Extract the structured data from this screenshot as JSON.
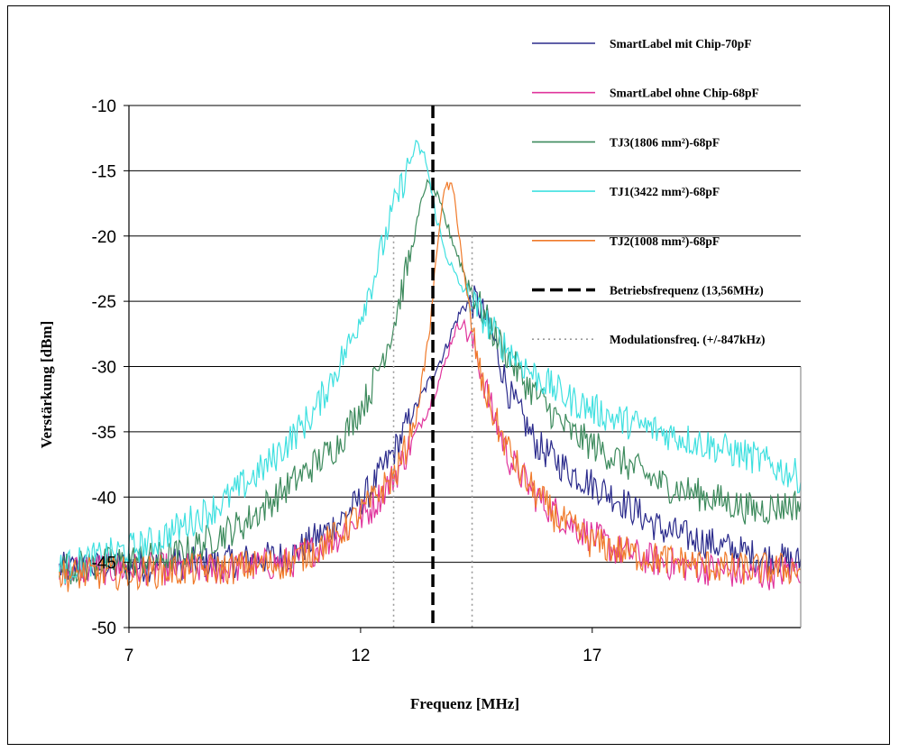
{
  "chart_data": {
    "type": "line",
    "xlabel": "Frequenz [MHz]",
    "ylabel": "Verstärkung [dBm]",
    "xlim": [
      7,
      21.5
    ],
    "ylim": [
      -50,
      -10
    ],
    "x_ticks": [
      7,
      12,
      17
    ],
    "y_ticks": [
      -10,
      -15,
      -20,
      -25,
      -30,
      -35,
      -40,
      -45,
      -50
    ],
    "grid": "horizontal",
    "legend_position": "top-right",
    "series": [
      {
        "name": "SmartLabel mit Chip-70pF",
        "color": "#2b2b8c",
        "x": [
          5.5,
          9,
          10.5,
          11.5,
          12.2,
          12.8,
          13.2,
          13.5,
          13.8,
          14.0,
          14.2,
          14.5,
          14.8,
          15.2,
          15.8,
          16.5,
          17.5,
          18.5,
          19.5,
          20.5,
          21.5
        ],
        "y": [
          -45.5,
          -45,
          -44.5,
          -42,
          -39.5,
          -36,
          -33,
          -31,
          -29,
          -27,
          -25.5,
          -25,
          -27,
          -32,
          -36,
          -38,
          -40,
          -42.5,
          -43.5,
          -44.5,
          -45
        ]
      },
      {
        "name": "SmartLabel ohne Chip-68pF",
        "color": "#e0349c",
        "x": [
          5.5,
          9,
          10.5,
          11.5,
          12.2,
          12.8,
          13.2,
          13.5,
          13.8,
          14.0,
          14.2,
          14.5,
          14.8,
          15.2,
          15.8,
          16.5,
          17.5,
          18.5,
          19.5,
          20.5,
          21.5
        ],
        "y": [
          -45.5,
          -45.5,
          -45,
          -43,
          -41,
          -38,
          -35,
          -33,
          -30,
          -27.5,
          -26.5,
          -29,
          -33,
          -37,
          -40,
          -42,
          -44,
          -45,
          -45.5,
          -46,
          -45.5
        ]
      },
      {
        "name": "TJ3(1806 mm²)-68pF",
        "color": "#3c8a5c",
        "x": [
          5.5,
          8,
          9.5,
          10.5,
          11.5,
          12.2,
          12.7,
          13.1,
          13.4,
          13.6,
          13.9,
          14.3,
          14.8,
          15.5,
          16.5,
          17.5,
          18.5,
          19.5,
          20.5,
          21.5
        ],
        "y": [
          -45.5,
          -44.5,
          -42,
          -39,
          -36,
          -32,
          -27,
          -21,
          -16,
          -16.5,
          -19.5,
          -23.5,
          -27,
          -31,
          -35,
          -37,
          -39,
          -40,
          -41,
          -40.5
        ]
      },
      {
        "name": "TJ1(3422 mm²)-68pF",
        "color": "#3fe0e0",
        "x": [
          5.5,
          7.5,
          9,
          10,
          11,
          11.8,
          12.3,
          12.7,
          13.0,
          13.2,
          13.4,
          13.6,
          13.8,
          14.1,
          14.5,
          15.0,
          15.7,
          16.5,
          17.5,
          18.5,
          19.5,
          20.5,
          21.5
        ],
        "y": [
          -45.5,
          -43.5,
          -40.5,
          -37.5,
          -33.5,
          -28,
          -23,
          -18,
          -15,
          -13,
          -14,
          -18,
          -21,
          -23.5,
          -25.5,
          -28,
          -30.5,
          -32.5,
          -34,
          -35,
          -36,
          -37,
          -38.5
        ]
      },
      {
        "name": "TJ2(1008 mm²)-68pF",
        "color": "#f07a2a",
        "x": [
          5.5,
          9,
          10.5,
          11.5,
          12.2,
          12.8,
          13.2,
          13.5,
          13.7,
          13.85,
          14.0,
          14.1,
          14.3,
          14.6,
          15.0,
          15.5,
          16.2,
          17.0,
          18.0,
          19.0,
          20.0,
          21.0,
          21.5
        ],
        "y": [
          -46,
          -45.5,
          -45,
          -43,
          -40.5,
          -38,
          -34,
          -27,
          -19,
          -16,
          -16.5,
          -19,
          -25,
          -31,
          -35,
          -38.5,
          -41.5,
          -43.5,
          -44.5,
          -45,
          -45.5,
          -45.5,
          -45.5
        ]
      }
    ],
    "vlines": [
      {
        "name": "Betriebsfrequenz (13,56MHz)",
        "x": 13.56,
        "style": "dashed",
        "color": "#000000"
      },
      {
        "name": "Modulationsfreq. (+/-847kHz)",
        "x": [
          12.713,
          14.407
        ],
        "style": "dotted",
        "color": "#9a9a9a"
      }
    ]
  }
}
